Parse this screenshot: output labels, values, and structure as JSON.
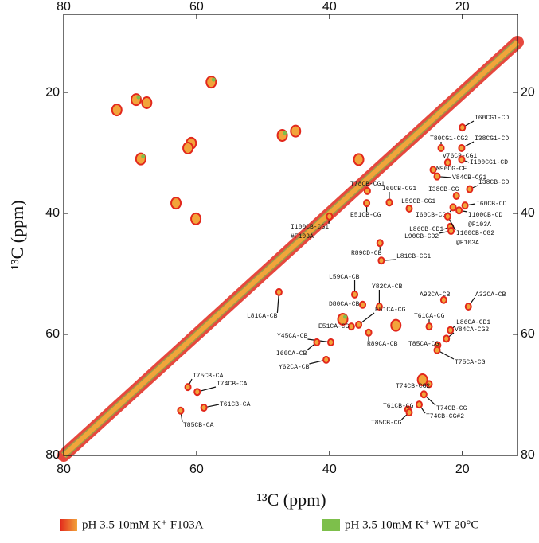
{
  "chart_data": {
    "type": "scatter",
    "xlabel": "¹³C  (ppm)",
    "ylabel": "¹³C  (ppm)",
    "xlim": [
      80,
      11.7
    ],
    "ylim": [
      7.1,
      80
    ],
    "xticks": [
      80,
      60,
      40,
      20
    ],
    "yticks": [
      20,
      40,
      60,
      80
    ],
    "series": [
      {
        "name": "pH 3.5 10mM K⁺ F103A",
        "color": "#e2281c",
        "color2": "#f2a43a"
      },
      {
        "name": "pH 3.5 10mM K⁺ WT 20°C",
        "color": "#7dbf4b"
      }
    ],
    "peaks": {
      "labels": [
        "I60CG1-CD",
        "I38CG1-CD",
        "T80CG1-CG2",
        "V76CB-CG1",
        "I100CG1-CD",
        "M96CG-CE",
        "V84CB-CG1",
        "I38CB-CD",
        "T78CB-CG1",
        "I60CB-CG1",
        "I38CB-CG",
        "L59CB-CG1",
        "I60CB-CD",
        "E51CB-CG",
        [
          "I100CB-CD",
          "@F103A"
        ],
        "I60CB-CG2",
        "L86CB-CD1",
        "L90CB-CD2",
        [
          "I100CB-CG2",
          "@F103A"
        ],
        [
          "I100CB-CG1",
          "#F103A"
        ],
        "R89CD-CB",
        "L81CB-CG1",
        "L59CA-CB",
        "Y82CA-CB",
        "D80CA-CB",
        "L81CA-CB",
        "A92CA-CB",
        "A32CA-CB",
        "E51CA-CG",
        "T61CA-CG",
        "L86CA-CD1",
        "E51CA-CG",
        "V84CA-CG2",
        "Y45CA-CB",
        "R89CA-CB",
        "T85CA-CG",
        "T75CA-CG",
        "I60CA-CB",
        "Y62CA-CB",
        "T74CB-CG2",
        "T75CB-CA",
        "T74CB-CA",
        "T61CB-CA",
        "T85CB-CA",
        "T61CB-CG",
        "T74CB-CG",
        "T74CB-CG#2",
        "T85CB-CG"
      ],
      "x": [
        20.0,
        20.1,
        23.2,
        22.2,
        20.1,
        24.4,
        23.8,
        18.9,
        34.3,
        31.0,
        20.9,
        28.0,
        19.6,
        34.4,
        20.5,
        21.4,
        21.8,
        21.7,
        22.2,
        40.0,
        32.4,
        32.2,
        36.2,
        32.5,
        35.0,
        47.6,
        22.8,
        19.1,
        35.6,
        25.0,
        21.8,
        36.7,
        22.4,
        39.8,
        34.1,
        23.7,
        23.8,
        41.9,
        40.5,
        25.0,
        61.3,
        59.9,
        58.9,
        62.4,
        28.2,
        25.8,
        26.5,
        28.0
      ],
      "y": [
        25.8,
        29.2,
        29.2,
        31.6,
        31.1,
        32.8,
        33.9,
        36.0,
        36.3,
        38.2,
        37.1,
        39.2,
        38.7,
        38.3,
        39.5,
        39.0,
        42.2,
        42.9,
        40.5,
        40.5,
        44.9,
        47.8,
        53.4,
        55.4,
        55.1,
        53.0,
        54.3,
        55.4,
        58.4,
        58.7,
        59.3,
        58.7,
        60.7,
        61.3,
        59.7,
        61.8,
        62.6,
        61.3,
        64.2,
        68.2,
        68.7,
        69.5,
        72.1,
        72.6,
        72.4,
        69.9,
        71.6,
        72.9
      ]
    },
    "extra_peaks": {
      "x": [
        69.1,
        67.5,
        72.0,
        57.8,
        60.8,
        61.3,
        68.4,
        63.1,
        60.1,
        47.1,
        45.1,
        35.6,
        38.0,
        30.0,
        26.0
      ],
      "y": [
        21.2,
        21.7,
        22.9,
        18.3,
        28.4,
        29.2,
        31.0,
        38.3,
        40.9,
        27.1,
        26.4,
        31.1,
        57.5,
        58.5,
        67.5
      ]
    }
  }
}
